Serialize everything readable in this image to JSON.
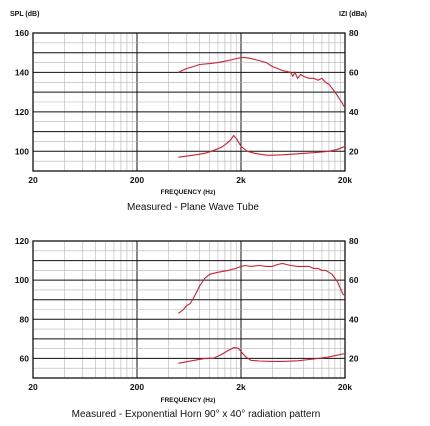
{
  "chart_data": [
    {
      "type": "line",
      "left_axis_label": "SPL (dB)",
      "right_axis_label": "IZI (dBa)",
      "xlabel": "FREQUENCY (Hz)",
      "caption": "Measured - Plane Wave Tube",
      "x_scale": "log",
      "xlim": [
        20,
        20000
      ],
      "ylim": [
        90,
        160
      ],
      "y2lim": [
        10,
        80
      ],
      "x_ticks": [
        {
          "value": 20,
          "label": "20"
        },
        {
          "value": 200,
          "label": "200"
        },
        {
          "value": 2000,
          "label": "2k"
        },
        {
          "value": 20000,
          "label": "20k"
        }
      ],
      "y_ticks": [
        {
          "value": 100,
          "label": "100"
        },
        {
          "value": 120,
          "label": "120"
        },
        {
          "value": 140,
          "label": "140"
        },
        {
          "value": 160,
          "label": "160"
        }
      ],
      "y2_ticks": [
        {
          "value": 20,
          "label": "20"
        },
        {
          "value": 40,
          "label": "40"
        },
        {
          "value": 60,
          "label": "60"
        },
        {
          "value": 80,
          "label": "80"
        }
      ],
      "grid": true,
      "line_color": "#cc2233",
      "series": [
        {
          "axis": "left",
          "x": [
            500,
            600,
            700,
            800,
            1000,
            1200,
            1500,
            1800,
            2000,
            2200,
            2500,
            3000,
            3500,
            4000,
            4500,
            5000,
            5500,
            6000,
            6300,
            6600,
            7000,
            7500,
            8000,
            9000,
            10000,
            11000,
            12000,
            13000,
            14000,
            15000,
            16000,
            17000,
            18000,
            19000,
            20000
          ],
          "y": [
            140,
            142,
            143,
            144,
            144.5,
            145,
            146,
            147,
            147.5,
            147.5,
            147,
            146,
            145,
            143,
            142,
            141,
            140.5,
            140,
            138,
            140,
            137,
            139,
            138,
            137,
            137,
            136,
            137,
            135,
            134,
            132,
            130,
            128,
            126,
            124,
            122
          ]
        },
        {
          "axis": "right",
          "x": [
            500,
            700,
            900,
            1100,
            1300,
            1500,
            1600,
            1700,
            1800,
            1900,
            2000,
            2300,
            2700,
            3500,
            4000,
            5000,
            7000,
            10000,
            14000,
            17000,
            20000
          ],
          "y": [
            17,
            18,
            19,
            20.5,
            22,
            24.5,
            26,
            28,
            26.5,
            24.5,
            22.5,
            20,
            19,
            18,
            18,
            18.2,
            18.7,
            19.3,
            20,
            21,
            22.5
          ]
        }
      ]
    },
    {
      "type": "line",
      "xlabel": "FREQUENCY (Hz)",
      "caption": "Measured - Exponential Horn 90° x 40° radiation pattern",
      "x_scale": "log",
      "xlim": [
        20,
        20000
      ],
      "ylim": [
        50,
        120
      ],
      "y2lim": [
        10,
        80
      ],
      "x_ticks": [
        {
          "value": 20,
          "label": "20"
        },
        {
          "value": 200,
          "label": "200"
        },
        {
          "value": 2000,
          "label": "2k"
        },
        {
          "value": 20000,
          "label": "20k"
        }
      ],
      "y_ticks": [
        {
          "value": 60,
          "label": "60"
        },
        {
          "value": 80,
          "label": "80"
        },
        {
          "value": 100,
          "label": "100"
        },
        {
          "value": 120,
          "label": "120"
        }
      ],
      "y2_ticks": [
        {
          "value": 20,
          "label": "20"
        },
        {
          "value": 40,
          "label": "40"
        },
        {
          "value": 60,
          "label": "60"
        },
        {
          "value": 80,
          "label": "80"
        }
      ],
      "grid": true,
      "line_color": "#cc2233",
      "series": [
        {
          "axis": "left",
          "x": [
            500,
            560,
            600,
            650,
            700,
            750,
            800,
            900,
            1000,
            1200,
            1500,
            1800,
            2000,
            2200,
            2500,
            3000,
            3500,
            4000,
            4500,
            5000,
            5500,
            6000,
            7000,
            8000,
            9000,
            10000,
            11000,
            12000,
            13000,
            14000,
            15000,
            16000,
            17000,
            18000,
            19000,
            20000
          ],
          "y": [
            83,
            85,
            87,
            88,
            91,
            94,
            97,
            101,
            103,
            104,
            105,
            106,
            107,
            107.5,
            107,
            107.5,
            107,
            107,
            108,
            108.5,
            108,
            107.5,
            107,
            107,
            107,
            106,
            106,
            105,
            105,
            104,
            103,
            101,
            99,
            96,
            93,
            92
          ]
        },
        {
          "axis": "right",
          "x": [
            500,
            700,
            900,
            1100,
            1300,
            1500,
            1700,
            1800,
            1900,
            2000,
            2200,
            2500,
            3000,
            4000,
            5000,
            7000,
            10000,
            14000,
            20000
          ],
          "y": [
            17.5,
            19,
            20,
            20.2,
            22,
            24,
            25.5,
            25.5,
            25,
            23.5,
            21,
            19,
            18.7,
            18.5,
            18.5,
            18.8,
            19.7,
            20.8,
            22.5
          ]
        }
      ]
    }
  ]
}
